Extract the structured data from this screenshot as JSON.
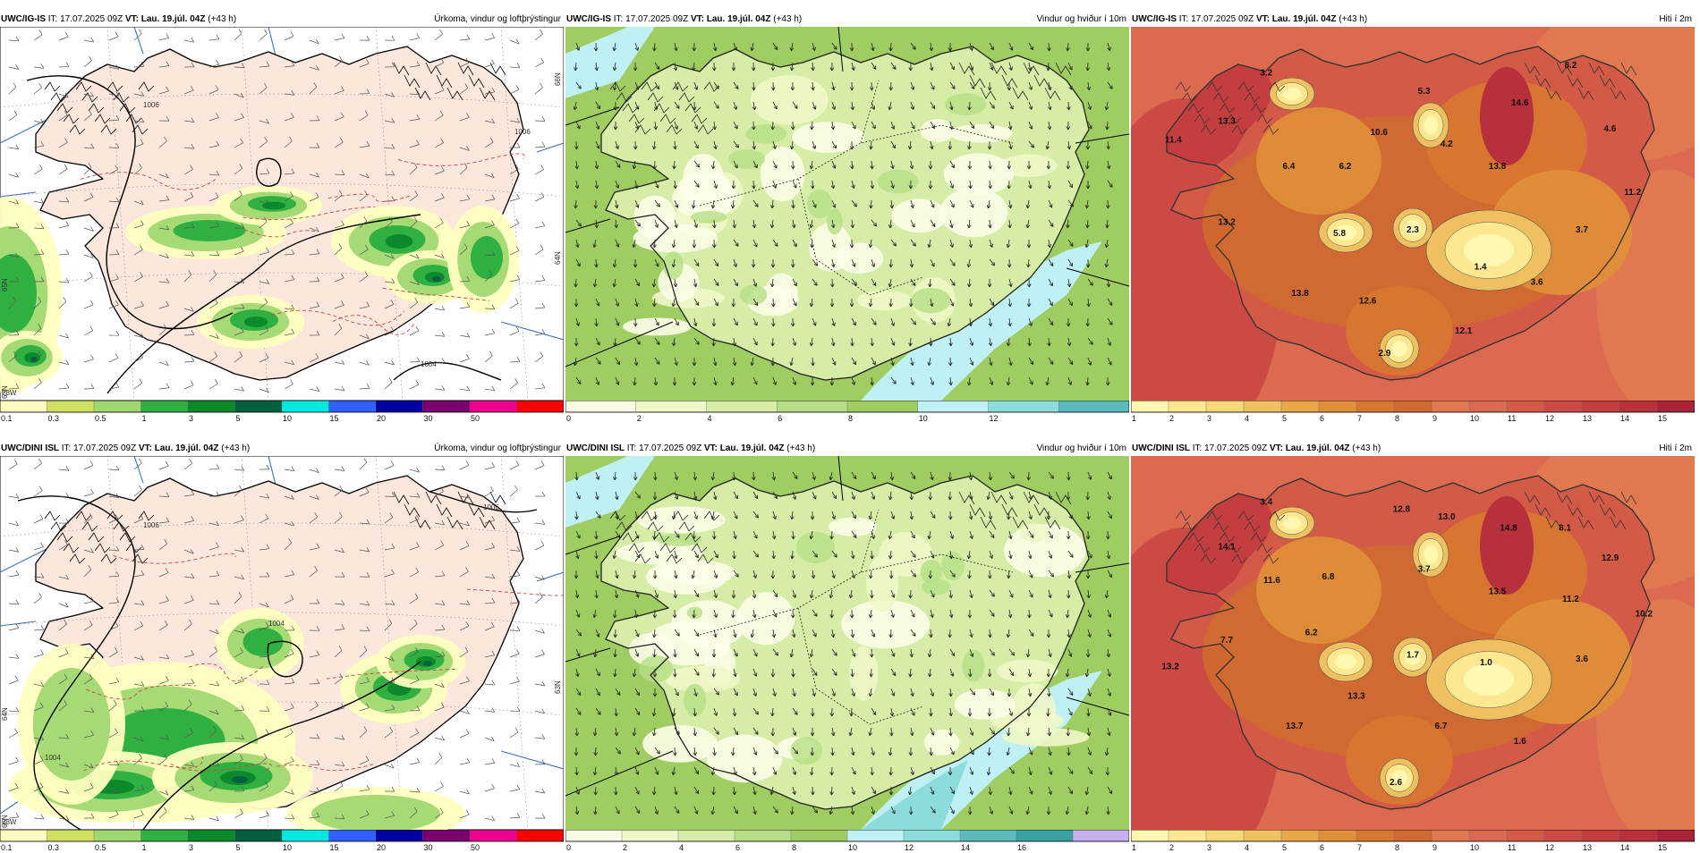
{
  "panels": [
    {
      "id": "p1",
      "col": 0,
      "row": 0,
      "type": "precip",
      "prefix": "UWC/IG-IS",
      "it_label": "IT:",
      "it": "17.07.2025 09Z",
      "vt_label": "VT:",
      "vt": "Lau. 19.júl. 04Z",
      "lead": "(+43 h)",
      "product": "Úrkoma, vindur og loftþrýstingur",
      "legend": [
        {
          "label": "0.1",
          "color": "#ffffc0"
        },
        {
          "label": "0.3",
          "color": "#d0e060"
        },
        {
          "label": "0.5",
          "color": "#a0d870"
        },
        {
          "label": "1",
          "color": "#30b040"
        },
        {
          "label": "3",
          "color": "#0a8a2a"
        },
        {
          "label": "5",
          "color": "#006040"
        },
        {
          "label": "10",
          "color": "#00e8e0"
        },
        {
          "label": "15",
          "color": "#3060ff"
        },
        {
          "label": "20",
          "color": "#0000a0"
        },
        {
          "label": "30",
          "color": "#7a0070"
        },
        {
          "label": "50",
          "color": "#f00090"
        },
        {
          "label": "",
          "color": "#ff0000"
        }
      ],
      "lat_labels": [
        "65N",
        "64N",
        "63N",
        "66N"
      ],
      "lon_labels": [
        "23W"
      ],
      "isobars": [
        "1006",
        "1006",
        "1004"
      ]
    },
    {
      "id": "p2",
      "col": 1,
      "row": 0,
      "type": "wind",
      "prefix": "UWC/IG-IS",
      "it_label": "IT:",
      "it": "17.07.2025 09Z",
      "vt_label": "VT:",
      "vt": "Lau. 19.júl. 04Z",
      "lead": "(+43 h)",
      "product": "Vindur og hviður í 10m",
      "legend": [
        {
          "label": "0",
          "color": "#fbfde8"
        },
        {
          "label": "2",
          "color": "#eef7c8"
        },
        {
          "label": "4",
          "color": "#d5eda6"
        },
        {
          "label": "6",
          "color": "#b7de86"
        },
        {
          "label": "8",
          "color": "#9fcd62"
        },
        {
          "label": "10",
          "color": "#bff0f4"
        },
        {
          "label": "12",
          "color": "#8ddcdc"
        },
        {
          "label": "",
          "color": "#5cbcbc"
        }
      ]
    },
    {
      "id": "p3",
      "col": 2,
      "row": 0,
      "type": "temp",
      "prefix": "UWC/IG-IS",
      "it_label": "IT:",
      "it": "17.07.2025 09Z",
      "vt_label": "VT:",
      "vt": "Lau. 19.júl. 04Z",
      "lead": "(+43 h)",
      "product": "Hiti í 2m",
      "legend": [
        {
          "label": "1",
          "color": "#fff8b0"
        },
        {
          "label": "2",
          "color": "#fbe890"
        },
        {
          "label": "3",
          "color": "#f5d878"
        },
        {
          "label": "4",
          "color": "#eec060"
        },
        {
          "label": "5",
          "color": "#e8a848"
        },
        {
          "label": "6",
          "color": "#e09038"
        },
        {
          "label": "7",
          "color": "#d87830"
        },
        {
          "label": "8",
          "color": "#d06a30"
        },
        {
          "label": "9",
          "color": "#e07850"
        },
        {
          "label": "10",
          "color": "#dc6a50"
        },
        {
          "label": "11",
          "color": "#d45a48"
        },
        {
          "label": "12",
          "color": "#cc4a44"
        },
        {
          "label": "13",
          "color": "#c43e40"
        },
        {
          "label": "14",
          "color": "#b8303c"
        },
        {
          "label": "15",
          "color": "#a82238"
        }
      ],
      "values": [
        {
          "v": "3.2",
          "x": 0.24,
          "y": 0.13
        },
        {
          "v": "5.3",
          "x": 0.52,
          "y": 0.18
        },
        {
          "v": "14.6",
          "x": 0.69,
          "y": 0.21
        },
        {
          "v": "8.2",
          "x": 0.78,
          "y": 0.11
        },
        {
          "v": "11.4",
          "x": 0.075,
          "y": 0.31
        },
        {
          "v": "13.3",
          "x": 0.17,
          "y": 0.26
        },
        {
          "v": "10.6",
          "x": 0.44,
          "y": 0.29
        },
        {
          "v": "4.2",
          "x": 0.56,
          "y": 0.32
        },
        {
          "v": "4.6",
          "x": 0.85,
          "y": 0.28
        },
        {
          "v": "6.4",
          "x": 0.28,
          "y": 0.38
        },
        {
          "v": "6.2",
          "x": 0.38,
          "y": 0.38
        },
        {
          "v": "13.8",
          "x": 0.65,
          "y": 0.38
        },
        {
          "v": "11.2",
          "x": 0.89,
          "y": 0.45
        },
        {
          "v": "13.2",
          "x": 0.17,
          "y": 0.53
        },
        {
          "v": "5.8",
          "x": 0.37,
          "y": 0.56
        },
        {
          "v": "2.3",
          "x": 0.5,
          "y": 0.55
        },
        {
          "v": "3.7",
          "x": 0.8,
          "y": 0.55
        },
        {
          "v": "1.4",
          "x": 0.62,
          "y": 0.65
        },
        {
          "v": "3.6",
          "x": 0.72,
          "y": 0.69
        },
        {
          "v": "13.8",
          "x": 0.3,
          "y": 0.72
        },
        {
          "v": "12.6",
          "x": 0.42,
          "y": 0.74
        },
        {
          "v": "12.1",
          "x": 0.59,
          "y": 0.82
        },
        {
          "v": "2.9",
          "x": 0.45,
          "y": 0.88
        }
      ]
    },
    {
      "id": "p4",
      "col": 0,
      "row": 1,
      "type": "precip",
      "prefix": "UWC/DINI ISL",
      "it_label": "IT:",
      "it": "17.07.2025 09Z",
      "vt_label": "VT:",
      "vt": "Lau. 19.júl. 04Z",
      "lead": "(+43 h)",
      "product": "Úrkoma, vindur og loftþrýstingur",
      "legend": [
        {
          "label": "0.1",
          "color": "#ffffc0"
        },
        {
          "label": "0.3",
          "color": "#d0e060"
        },
        {
          "label": "0.5",
          "color": "#a0d870"
        },
        {
          "label": "1",
          "color": "#30b040"
        },
        {
          "label": "3",
          "color": "#0a8a2a"
        },
        {
          "label": "5",
          "color": "#006040"
        },
        {
          "label": "10",
          "color": "#00e8e0"
        },
        {
          "label": "15",
          "color": "#3060ff"
        },
        {
          "label": "20",
          "color": "#0000a0"
        },
        {
          "label": "30",
          "color": "#7a0070"
        },
        {
          "label": "50",
          "color": "#f00090"
        },
        {
          "label": "",
          "color": "#ff0000"
        }
      ],
      "lat_labels": [
        "64N",
        "63N",
        "66N"
      ],
      "lon_labels": [
        "23W"
      ],
      "isobars": [
        "1006",
        "1004",
        "1004",
        "1006"
      ]
    },
    {
      "id": "p5",
      "col": 1,
      "row": 1,
      "type": "wind",
      "prefix": "UWC/DINI ISL",
      "it_label": "IT:",
      "it": "17.07.2025 09Z",
      "vt_label": "VT:",
      "vt": "Lau. 19.júl. 04Z",
      "lead": "(+43 h)",
      "product": "Vindur og hviður í 10m",
      "legend": [
        {
          "label": "0",
          "color": "#fbfde8"
        },
        {
          "label": "2",
          "color": "#eef7c8"
        },
        {
          "label": "4",
          "color": "#d5eda6"
        },
        {
          "label": "6",
          "color": "#b7de86"
        },
        {
          "label": "8",
          "color": "#9fcd62"
        },
        {
          "label": "10",
          "color": "#bff0f4"
        },
        {
          "label": "12",
          "color": "#8ddcdc"
        },
        {
          "label": "14",
          "color": "#5cbcbc"
        },
        {
          "label": "16",
          "color": "#3aa0a0"
        },
        {
          "label": "",
          "color": "#c8b0f0"
        }
      ]
    },
    {
      "id": "p6",
      "col": 2,
      "row": 1,
      "type": "temp",
      "prefix": "UWC/DINI ISL",
      "it_label": "IT:",
      "it": "17.07.2025 09Z",
      "vt_label": "VT:",
      "vt": "Lau. 19.júl. 04Z",
      "lead": "(+43 h)",
      "product": "Hiti í 2m",
      "legend": [
        {
          "label": "1",
          "color": "#fff8b0"
        },
        {
          "label": "2",
          "color": "#fbe890"
        },
        {
          "label": "3",
          "color": "#f5d878"
        },
        {
          "label": "4",
          "color": "#eec060"
        },
        {
          "label": "5",
          "color": "#e8a848"
        },
        {
          "label": "6",
          "color": "#e09038"
        },
        {
          "label": "7",
          "color": "#d87830"
        },
        {
          "label": "8",
          "color": "#d06a30"
        },
        {
          "label": "9",
          "color": "#e07850"
        },
        {
          "label": "10",
          "color": "#dc6a50"
        },
        {
          "label": "11",
          "color": "#d45a48"
        },
        {
          "label": "12",
          "color": "#cc4a44"
        },
        {
          "label": "13",
          "color": "#c43e40"
        },
        {
          "label": "14",
          "color": "#b8303c"
        },
        {
          "label": "15",
          "color": "#a82238"
        }
      ],
      "values": [
        {
          "v": "3.4",
          "x": 0.24,
          "y": 0.13
        },
        {
          "v": "12.8",
          "x": 0.48,
          "y": 0.15
        },
        {
          "v": "13.0",
          "x": 0.56,
          "y": 0.17
        },
        {
          "v": "14.8",
          "x": 0.67,
          "y": 0.2
        },
        {
          "v": "8.1",
          "x": 0.77,
          "y": 0.2
        },
        {
          "v": "14.1",
          "x": 0.17,
          "y": 0.25
        },
        {
          "v": "12.9",
          "x": 0.85,
          "y": 0.28
        },
        {
          "v": "11.6",
          "x": 0.25,
          "y": 0.34
        },
        {
          "v": "6.8",
          "x": 0.35,
          "y": 0.33
        },
        {
          "v": "3.7",
          "x": 0.52,
          "y": 0.31
        },
        {
          "v": "13.5",
          "x": 0.65,
          "y": 0.37
        },
        {
          "v": "11.2",
          "x": 0.78,
          "y": 0.39
        },
        {
          "v": "10.2",
          "x": 0.91,
          "y": 0.43
        },
        {
          "v": "6.2",
          "x": 0.32,
          "y": 0.48
        },
        {
          "v": "7.7",
          "x": 0.17,
          "y": 0.5
        },
        {
          "v": "1.7",
          "x": 0.5,
          "y": 0.54
        },
        {
          "v": "13.2",
          "x": 0.07,
          "y": 0.57
        },
        {
          "v": "1.0",
          "x": 0.63,
          "y": 0.56
        },
        {
          "v": "3.6",
          "x": 0.8,
          "y": 0.55
        },
        {
          "v": "13.3",
          "x": 0.4,
          "y": 0.65
        },
        {
          "v": "6.7",
          "x": 0.55,
          "y": 0.73
        },
        {
          "v": "13.7",
          "x": 0.29,
          "y": 0.73
        },
        {
          "v": "1.6",
          "x": 0.69,
          "y": 0.77
        },
        {
          "v": "2.6",
          "x": 0.47,
          "y": 0.88
        }
      ]
    }
  ]
}
